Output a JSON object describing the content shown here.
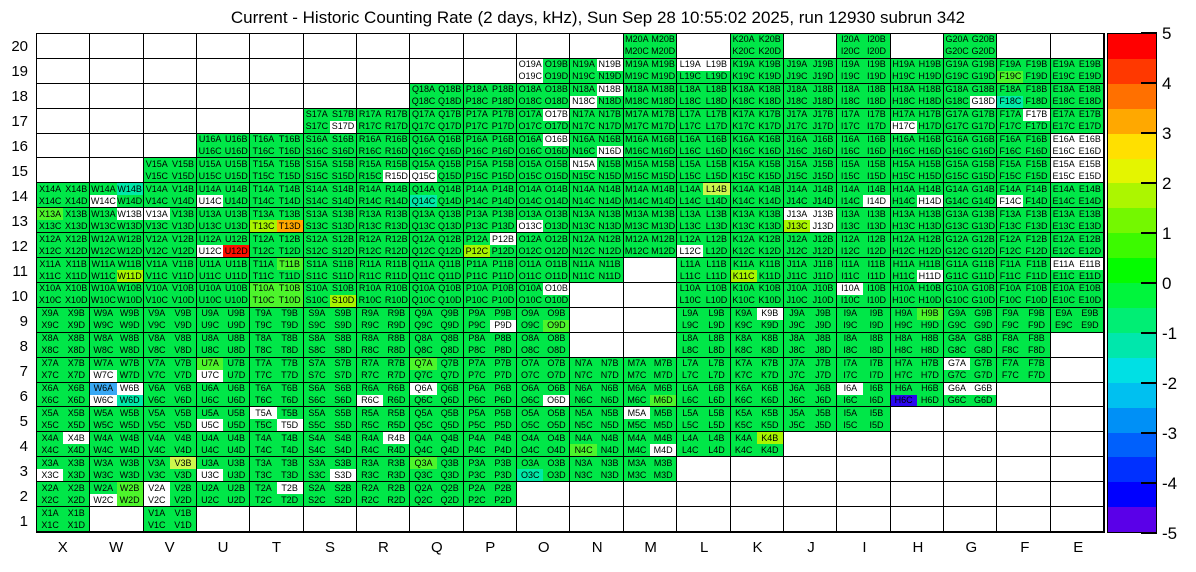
{
  "title": "Current - Historic Counting Rate (2 days, kHz), Sun Sep 28 10:55:02 2025, run 12930 subrun 342",
  "chart_data": {
    "type": "heatmap",
    "title": "Current - Historic Counting Rate (2 days, kHz), Sun Sep 28 10:55:02 2025, run 12930 subrun 342",
    "x_labels": [
      "X",
      "W",
      "V",
      "U",
      "T",
      "S",
      "R",
      "Q",
      "P",
      "O",
      "N",
      "M",
      "L",
      "K",
      "J",
      "I",
      "H",
      "G",
      "F",
      "E"
    ],
    "y_labels": [
      "20",
      "19",
      "18",
      "17",
      "16",
      "15",
      "14",
      "13",
      "12",
      "11",
      "10",
      "9",
      "8",
      "7",
      "6",
      "5",
      "4",
      "3",
      "2",
      "1"
    ],
    "quadrant_letters": [
      "A",
      "B",
      "C",
      "D"
    ],
    "grid_on": true,
    "legend_position": "right",
    "colorbar": {
      "min": -5,
      "max": 5,
      "tick_labels": [
        "5",
        "4",
        "3",
        "2",
        "1",
        "0",
        "-1",
        "-2",
        "-3",
        "-4",
        "-5"
      ],
      "colors_top_to_bottom": [
        "#FF0000",
        "#FF3800",
        "#FF7000",
        "#FFA800",
        "#FFE000",
        "#E4F500",
        "#ACF600",
        "#74F800",
        "#3CFA00",
        "#04FC00",
        "#00F53C",
        "#00EE74",
        "#00E7AC",
        "#00E0E4",
        "#00C0F0",
        "#0090F6",
        "#0060FC",
        "#0030FF",
        "#0000FF",
        "#5A00E8"
      ]
    },
    "color_key": {
      "g": "#00E748",
      "1": "#4DF52B",
      "2": "#A8F500",
      "3": "#CDF74C",
      "o": "#FFA800",
      "r": "#FF0D00",
      "t": "#00E9A8",
      "b": "#39A8F5",
      "B": "#2A08F0",
      "w": "#FFFFFF"
    },
    "cells": {
      "20": {
        "M": "gggg",
        "K": "gggg",
        "I": "gggg",
        "G": "gggg"
      },
      "19": {
        "O": "wgwg",
        "N": "gwgg",
        "M": "gggg",
        "L": "wwgg",
        "K": "gggg",
        "J": "gggg",
        "I": "gggg",
        "H": "gggg",
        "G": "gggg",
        "F": "gg1g",
        "E": "gggg"
      },
      "18": {
        "Q": "gggg",
        "P": "gggg",
        "O": "gggg",
        "N": "gwwg",
        "M": "gggg",
        "L": "gggg",
        "K": "gggg",
        "J": "gggg",
        "I": "gggg",
        "H": "gggg",
        "G": "gggw",
        "F": "ggtg",
        "E": "gggg"
      },
      "17": {
        "S": "gggw",
        "R": "gggg",
        "Q": "gggg",
        "P": "gggg",
        "O": "gwgg",
        "N": "gggg",
        "M": "gggg",
        "L": "gggg",
        "K": "gggg",
        "J": "gggg",
        "I": "gggg",
        "H": "ggwg",
        "G": "gggg",
        "F": "gwgg",
        "E": "gggg"
      },
      "16": {
        "U": "gggg",
        "T": "gggg",
        "S": "gggg",
        "R": "gggg",
        "Q": "gggg",
        "P": "gggg",
        "O": "gwgg",
        "N": "gggw",
        "M": "gggg",
        "L": "gggg",
        "K": "gggg",
        "J": "gggg",
        "I": "gggg",
        "H": "gggg",
        "G": "gggg",
        "F": "gggg",
        "E": "wwww"
      },
      "15": {
        "V": "gggg",
        "U": "gggg",
        "T": "gggg",
        "S": "gggg",
        "R": "gggw",
        "Q": "ggwg",
        "P": "gggg",
        "O": "gggg",
        "N": "wggg",
        "M": "gggg",
        "L": "gggg",
        "K": "gggg",
        "J": "gggg",
        "I": "gggg",
        "H": "gggg",
        "G": "gggg",
        "F": "gggg",
        "E": "wwww"
      },
      "14": {
        "X": "gggg",
        "W": "gtwg",
        "V": "gggg",
        "U": "ggwg",
        "T": "gggg",
        "S": "gggg",
        "R": "gggg",
        "Q": "ggtg",
        "P": "gggg",
        "O": "gggg",
        "N": "gggg",
        "M": "gggg",
        "L": "g3gg",
        "K": "gggg",
        "J": "gggg",
        "I": "gggw",
        "H": "gggw",
        "G": "gggg",
        "F": "ggwg",
        "E": "gggg"
      },
      "13": {
        "X": "1ggg",
        "W": "gwgg",
        "V": "wggg",
        "U": "gggg",
        "T": "gg2o",
        "S": "gggg",
        "R": "gggg",
        "Q": "gggg",
        "P": "gggg",
        "O": "ggwg",
        "N": "gggg",
        "M": "gggg",
        "L": "gggg",
        "K": "gggg",
        "J": "ww2w",
        "I": "gggg",
        "H": "gggg",
        "G": "gggg",
        "F": "gggg",
        "E": "gggg"
      },
      "12": {
        "X": "gggg",
        "W": "gggg",
        "V": "gggg",
        "U": "ggwr",
        "T": "gggg",
        "S": "gggg",
        "R": "gggg",
        "Q": "gggg",
        "P": "gw2g",
        "O": "gggg",
        "N": "gggg",
        "M": "gggg",
        "L": "ggwg",
        "K": "gggg",
        "J": "gggg",
        "I": "gggg",
        "H": "gggg",
        "G": "gggg",
        "F": "gggg",
        "E": "gggg"
      },
      "11": {
        "X": "gggg",
        "W": "ggg2",
        "V": "gggg",
        "U": "gggg",
        "T": "g1gg",
        "S": "gggg",
        "R": "gggg",
        "Q": "gggg",
        "P": "gggg",
        "O": "gggg",
        "N": "gggg",
        "L": "gggg",
        "K": "gg2g",
        "J": "gggg",
        "I": "gggg",
        "H": "gggw",
        "G": "gggg",
        "F": "gggg",
        "E": "wwgg"
      },
      "10": {
        "X": "gggg",
        "W": "gggg",
        "V": "gggg",
        "U": "gggg",
        "T": "1111",
        "S": "ggg2",
        "R": "gggg",
        "Q": "gggg",
        "P": "gggg",
        "O": "gwgg",
        "L": "gggg",
        "K": "gggg",
        "J": "gggg",
        "I": "wggg",
        "H": "gggg",
        "G": "gggg",
        "F": "gggg",
        "E": "gggg"
      },
      "9": {
        "X": "gggg",
        "W": "gggg",
        "V": "gggg",
        "U": "gggg",
        "T": "gggg",
        "S": "gggg",
        "R": "gggg",
        "Q": "gggg",
        "P": "gggw",
        "O": "ggg1",
        "L": "gggg",
        "K": "gwgg",
        "J": "gggg",
        "I": "gggg",
        "H": "g1gg",
        "G": "gggg",
        "F": "gggg",
        "E": "gggg"
      },
      "8": {
        "X": "gggg",
        "W": "gggg",
        "V": "gggg",
        "U": "gggg",
        "T": "gggg",
        "S": "gggg",
        "R": "gggg",
        "Q": "gggg",
        "P": "gggg",
        "O": "gggg",
        "L": "gggg",
        "K": "gggg",
        "J": "gggg",
        "I": "gggg",
        "H": "gggg",
        "G": "gggg",
        "F": "gggg"
      },
      "7": {
        "X": "gggg",
        "W": "ggwg",
        "V": "gggg",
        "U": "1gwg",
        "T": "gggg",
        "S": "gggg",
        "R": "gggg",
        "Q": "1ggg",
        "P": "gggg",
        "O": "gggg",
        "N": "gggg",
        "M": "gggg",
        "L": "gggg",
        "K": "gggg",
        "J": "gggg",
        "I": "gggg",
        "H": "gggg",
        "G": "wggg",
        "F": "gggg"
      },
      "6": {
        "X": "gggg",
        "W": "bwwt",
        "V": "gggg",
        "U": "gggg",
        "T": "gggg",
        "S": "gggg",
        "R": "ggwg",
        "Q": "wggg",
        "P": "gggg",
        "O": "gggw",
        "N": "gggg",
        "M": "ggg1",
        "L": "gggg",
        "K": "gggg",
        "J": "gggg",
        "I": "wggg",
        "H": "ggBg",
        "G": "wwgg"
      },
      "5": {
        "X": "gggg",
        "W": "gggg",
        "V": "gggg",
        "U": "ggwg",
        "T": "wggw",
        "S": "gggg",
        "R": "gggg",
        "Q": "gggg",
        "P": "gggg",
        "O": "gggg",
        "N": "gggg",
        "M": "wggg",
        "L": "gggg",
        "K": "gggg",
        "J": "gggg",
        "I": "gggg"
      },
      "4": {
        "X": "gwgg",
        "W": "gggg",
        "V": "gggg",
        "U": "gggg",
        "T": "gggg",
        "S": "gggg",
        "R": "gwgg",
        "Q": "gggg",
        "P": "gggg",
        "O": "gggg",
        "N": "gg1g",
        "M": "gggw",
        "L": "gggg",
        "K": "g2gg"
      },
      "3": {
        "X": "ggwg",
        "W": "gggg",
        "V": "g3gg",
        "U": "ggwg",
        "T": "gggg",
        "S": "gggw",
        "R": "gggg",
        "Q": "1ggg",
        "P": "gggg",
        "O": "ggtg",
        "N": "gggg",
        "M": "gggg"
      },
      "2": {
        "X": "gggg",
        "W": "g1w1",
        "V": "wgwg",
        "U": "gggg",
        "T": "gwgg",
        "S": "gggg",
        "R": "gggg",
        "Q": "gggg",
        "P": "gggg"
      },
      "1": {
        "X": "gggg",
        "V": "gggg"
      }
    }
  }
}
